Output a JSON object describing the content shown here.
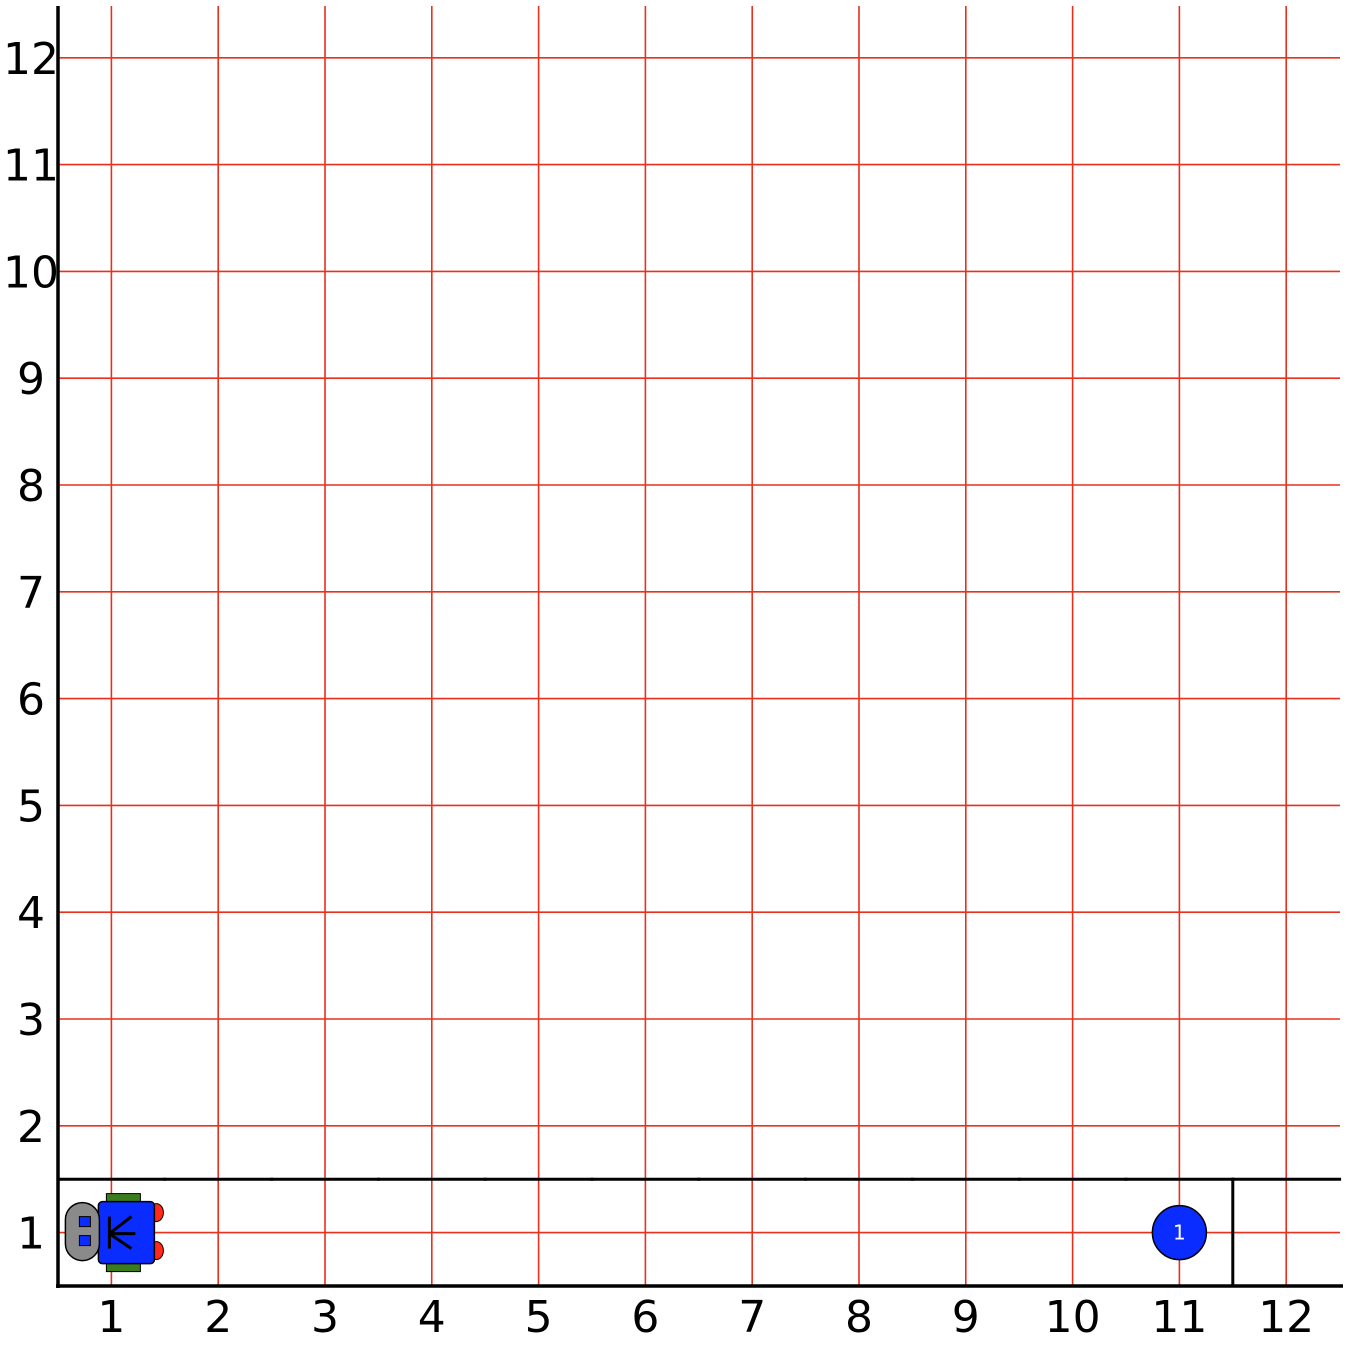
{
  "world": {
    "avenues": 12,
    "streets": 12,
    "x_labels": [
      "1",
      "2",
      "3",
      "4",
      "5",
      "6",
      "7",
      "8",
      "9",
      "10",
      "11",
      "12"
    ],
    "y_labels": [
      "1",
      "2",
      "3",
      "4",
      "5",
      "6",
      "7",
      "8",
      "9",
      "10",
      "11",
      "12"
    ],
    "grid_color": "#e8301c",
    "wall_color": "#000000",
    "walls": [
      {
        "type": "north",
        "x": 1,
        "y": 1
      },
      {
        "type": "north",
        "x": 2,
        "y": 1
      },
      {
        "type": "north",
        "x": 3,
        "y": 1
      },
      {
        "type": "north",
        "x": 4,
        "y": 1
      },
      {
        "type": "north",
        "x": 5,
        "y": 1
      },
      {
        "type": "north",
        "x": 6,
        "y": 1
      },
      {
        "type": "north",
        "x": 7,
        "y": 1
      },
      {
        "type": "north",
        "x": 8,
        "y": 1
      },
      {
        "type": "north",
        "x": 9,
        "y": 1
      },
      {
        "type": "north",
        "x": 10,
        "y": 1
      },
      {
        "type": "north",
        "x": 11,
        "y": 1
      },
      {
        "type": "north",
        "x": 12,
        "y": 1
      },
      {
        "type": "east",
        "x": 11,
        "y": 1
      }
    ],
    "beepers": [
      {
        "x": 11,
        "y": 1,
        "count": "1",
        "color": "#0a2cff"
      }
    ],
    "robot": {
      "x": 1,
      "y": 1,
      "facing": "west",
      "body_color": "#0a2cff",
      "tread_color": "#3a7d1e",
      "wheel_color": "#ff2a1a",
      "head_color": "#8a8a8a"
    }
  }
}
